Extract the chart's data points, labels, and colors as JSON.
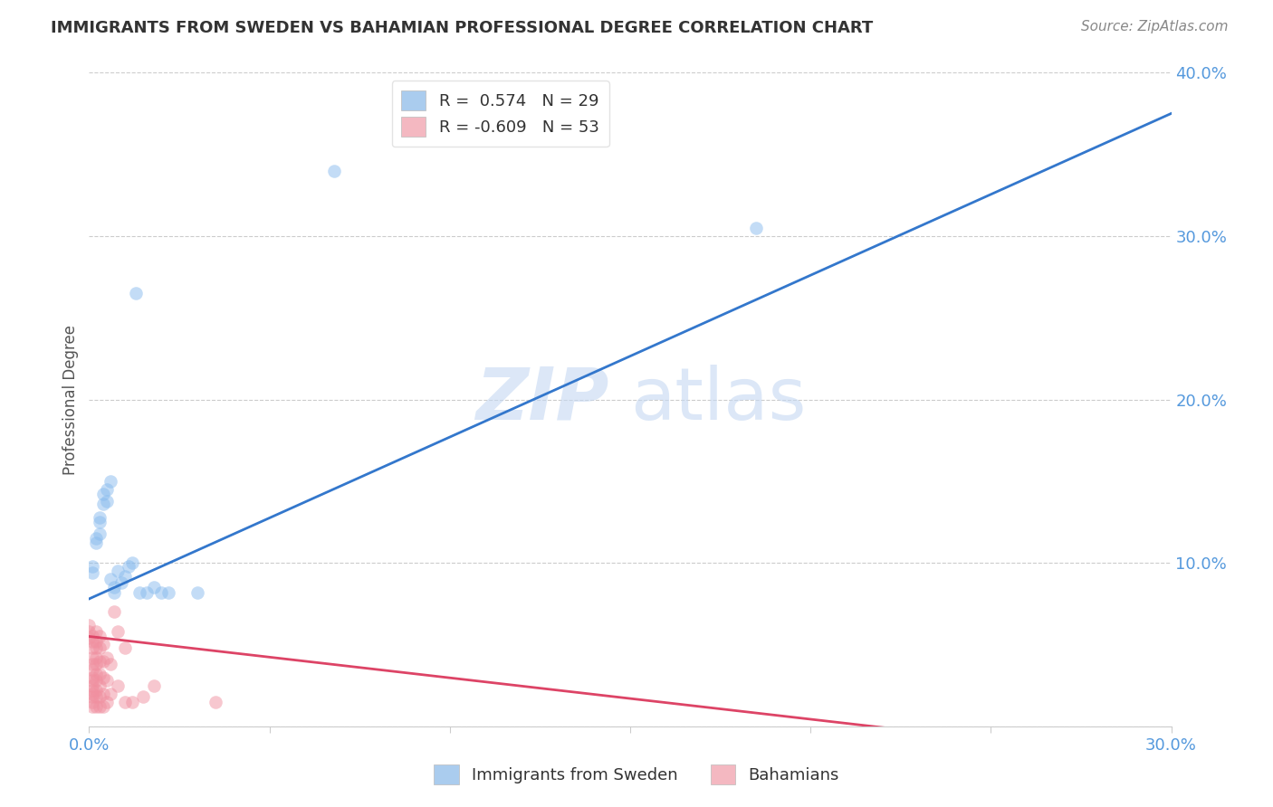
{
  "title": "IMMIGRANTS FROM SWEDEN VS BAHAMIAN PROFESSIONAL DEGREE CORRELATION CHART",
  "source": "Source: ZipAtlas.com",
  "ylabel": "Professional Degree",
  "xlim": [
    0.0,
    0.3
  ],
  "ylim": [
    0.0,
    0.4
  ],
  "xticks": [
    0.0,
    0.05,
    0.1,
    0.15,
    0.2,
    0.25,
    0.3
  ],
  "yticks": [
    0.0,
    0.1,
    0.2,
    0.3,
    0.4
  ],
  "blue_scatter": [
    [
      0.001,
      0.094
    ],
    [
      0.001,
      0.098
    ],
    [
      0.002,
      0.115
    ],
    [
      0.002,
      0.112
    ],
    [
      0.003,
      0.128
    ],
    [
      0.003,
      0.125
    ],
    [
      0.003,
      0.118
    ],
    [
      0.004,
      0.136
    ],
    [
      0.004,
      0.142
    ],
    [
      0.005,
      0.145
    ],
    [
      0.005,
      0.138
    ],
    [
      0.006,
      0.15
    ],
    [
      0.006,
      0.09
    ],
    [
      0.007,
      0.085
    ],
    [
      0.007,
      0.082
    ],
    [
      0.008,
      0.095
    ],
    [
      0.009,
      0.088
    ],
    [
      0.01,
      0.092
    ],
    [
      0.011,
      0.098
    ],
    [
      0.012,
      0.1
    ],
    [
      0.013,
      0.265
    ],
    [
      0.014,
      0.082
    ],
    [
      0.016,
      0.082
    ],
    [
      0.018,
      0.085
    ],
    [
      0.02,
      0.082
    ],
    [
      0.022,
      0.082
    ],
    [
      0.03,
      0.082
    ],
    [
      0.068,
      0.34
    ],
    [
      0.185,
      0.305
    ]
  ],
  "pink_scatter": [
    [
      0.0,
      0.062
    ],
    [
      0.0,
      0.058
    ],
    [
      0.0,
      0.054
    ],
    [
      0.001,
      0.055
    ],
    [
      0.001,
      0.052
    ],
    [
      0.001,
      0.048
    ],
    [
      0.001,
      0.042
    ],
    [
      0.001,
      0.038
    ],
    [
      0.001,
      0.035
    ],
    [
      0.001,
      0.03
    ],
    [
      0.001,
      0.028
    ],
    [
      0.001,
      0.025
    ],
    [
      0.001,
      0.022
    ],
    [
      0.001,
      0.02
    ],
    [
      0.001,
      0.018
    ],
    [
      0.001,
      0.015
    ],
    [
      0.001,
      0.012
    ],
    [
      0.002,
      0.058
    ],
    [
      0.002,
      0.052
    ],
    [
      0.002,
      0.048
    ],
    [
      0.002,
      0.042
    ],
    [
      0.002,
      0.038
    ],
    [
      0.002,
      0.032
    ],
    [
      0.002,
      0.028
    ],
    [
      0.002,
      0.022
    ],
    [
      0.002,
      0.018
    ],
    [
      0.002,
      0.012
    ],
    [
      0.003,
      0.055
    ],
    [
      0.003,
      0.048
    ],
    [
      0.003,
      0.04
    ],
    [
      0.003,
      0.032
    ],
    [
      0.003,
      0.025
    ],
    [
      0.003,
      0.018
    ],
    [
      0.003,
      0.012
    ],
    [
      0.004,
      0.05
    ],
    [
      0.004,
      0.04
    ],
    [
      0.004,
      0.03
    ],
    [
      0.004,
      0.02
    ],
    [
      0.004,
      0.012
    ],
    [
      0.005,
      0.042
    ],
    [
      0.005,
      0.028
    ],
    [
      0.005,
      0.015
    ],
    [
      0.006,
      0.038
    ],
    [
      0.006,
      0.02
    ],
    [
      0.007,
      0.07
    ],
    [
      0.008,
      0.058
    ],
    [
      0.008,
      0.025
    ],
    [
      0.01,
      0.048
    ],
    [
      0.01,
      0.015
    ],
    [
      0.012,
      0.015
    ],
    [
      0.015,
      0.018
    ],
    [
      0.018,
      0.025
    ],
    [
      0.035,
      0.015
    ]
  ],
  "blue_line_x": [
    0.0,
    0.3
  ],
  "blue_line_y": [
    0.078,
    0.375
  ],
  "pink_line_x": [
    0.0,
    0.225
  ],
  "pink_line_y": [
    0.055,
    -0.002
  ],
  "scatter_alpha": 0.5,
  "scatter_size": 110,
  "blue_color": "#88bbee",
  "pink_color": "#f090a0",
  "blue_line_color": "#3377cc",
  "pink_line_color": "#dd4466",
  "watermark_zip": "ZIP",
  "watermark_atlas": "atlas",
  "background_color": "#ffffff",
  "grid_color": "#cccccc",
  "tick_color": "#5599dd",
  "title_fontsize": 13,
  "source_fontsize": 11,
  "legend_r1": "R =  0.574   N = 29",
  "legend_r2": "R = -0.609   N = 53",
  "legend_c1": "#aaccee",
  "legend_c2": "#f4b8c1"
}
